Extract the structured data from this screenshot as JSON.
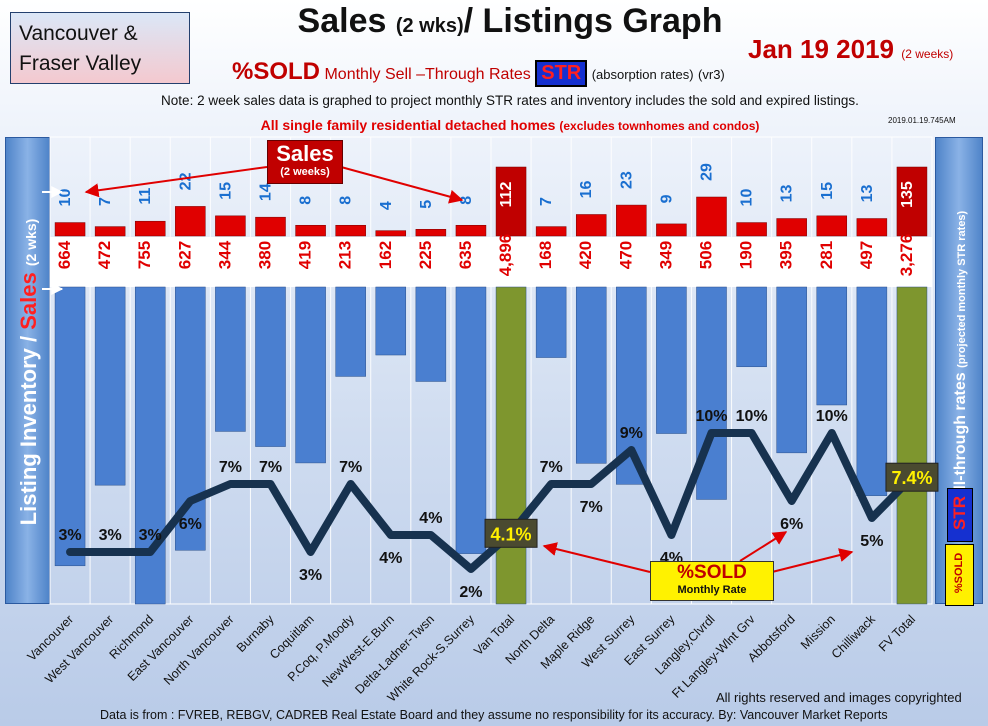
{
  "header": {
    "region_line1": "Vancouver &",
    "region_line2": "Fraser Valley",
    "title": "Sales",
    "title_small": "(2 wks)",
    "title_end": "/ Listings Graph",
    "date": "Jan 19 2019",
    "date_small": "(2 weeks)",
    "sold_label": "%SOLD",
    "subtitle_text": "Monthly Sell –Through Rates",
    "str_badge": "STR",
    "absorption": "(absorption rates)",
    "version": "(vr3)",
    "note": "Note: 2 week sales data is graphed to project monthly STR rates and inventory includes the sold and expired listings.",
    "subnote": "All single family residential detached homes",
    "subnote_small": "(excludes townhomes and condos)",
    "timestamp": "2019.01.19.745AM"
  },
  "left_axis": {
    "label_part1": "Listing Inventory /",
    "label_part2": "Sales",
    "label_part3": "(2 wks)"
  },
  "right_axis": {
    "label": "Sell-through rates",
    "label_small": "(projected monthly STR rates)",
    "str_badge": "STR",
    "sold_badge": "%SOLD"
  },
  "callouts": {
    "sales_title": "Sales",
    "sales_sub": "(2 weeks)",
    "sold_title": "%SOLD",
    "sold_sub": "Monthly Rate"
  },
  "footer": {
    "copyright": "All rights reserved and  images copyrighted",
    "data_source": "Data is from : FVREB, REBGV, CADREB Real Estate Board and they assume no responsibility for its accuracy. By: Vancouver Market Reports"
  },
  "colors": {
    "inventory_bar": "#4a7fd0",
    "total_bar": "#7e962e",
    "sales_bar": "#e00000",
    "line": "#17324f",
    "highlight_label": "#fff000"
  },
  "chart_data": {
    "type": "bar",
    "categories": [
      "Vancouver",
      "West Vancouver",
      "Richmond",
      "East Vancouver",
      "North Vancouver",
      "Burnaby",
      "Coquitlam",
      "P.Coq, P.Moody",
      "NewWest-E.Burn",
      "Delta-Ladner-Twsn",
      "White Rock-S.Surrey",
      "Van Total",
      "North Delta",
      "Maple Ridge",
      "West Surrey",
      "East Surrey",
      "Langley,Clvrdl",
      "Ft Langley-Wlnt Grv",
      "Abbotsford",
      "Mission",
      "Chilliwack",
      "FV Total"
    ],
    "series": [
      {
        "name": "Listing Inventory",
        "values": [
          664,
          472,
          755,
          627,
          344,
          380,
          419,
          213,
          162,
          225,
          635,
          4896,
          168,
          420,
          470,
          349,
          506,
          190,
          395,
          281,
          497,
          3276
        ]
      },
      {
        "name": "Sales",
        "values": [
          10,
          7,
          11,
          22,
          15,
          14,
          8,
          8,
          4,
          5,
          8,
          112,
          7,
          16,
          23,
          9,
          29,
          10,
          13,
          15,
          13,
          135
        ]
      },
      {
        "name": "%SOLD",
        "values": [
          3,
          3,
          3,
          6,
          7,
          7,
          3,
          7,
          4,
          4,
          2,
          4.1,
          7,
          7,
          9,
          4,
          10,
          10,
          6,
          10,
          5,
          7.4
        ]
      }
    ],
    "inventory_labels": [
      "664",
      "472",
      "755",
      "627",
      "344",
      "380",
      "419",
      "213",
      "162",
      "225",
      "635",
      "4,896",
      "168",
      "420",
      "470",
      "349",
      "506",
      "190",
      "395",
      "281",
      "497",
      "3,276"
    ],
    "sales_labels": [
      "10",
      "7",
      "11",
      "22",
      "15",
      "14",
      "8",
      "8",
      "4",
      "5",
      "8",
      "112",
      "7",
      "16",
      "23",
      "9",
      "29",
      "10",
      "13",
      "15",
      "13",
      "135"
    ],
    "pct_labels": [
      "3%",
      "3%",
      "3%",
      "6%",
      "7%",
      "7%",
      "3%",
      "7%",
      "4%",
      "4%",
      "2%",
      "4.1%",
      "7%",
      "7%",
      "9%",
      "4%",
      "10%",
      "10%",
      "6%",
      "10%",
      "5%",
      "7.4%"
    ],
    "highlighted": [
      "Van Total",
      "FV Total"
    ],
    "ylim_pct": [
      0,
      12
    ]
  }
}
